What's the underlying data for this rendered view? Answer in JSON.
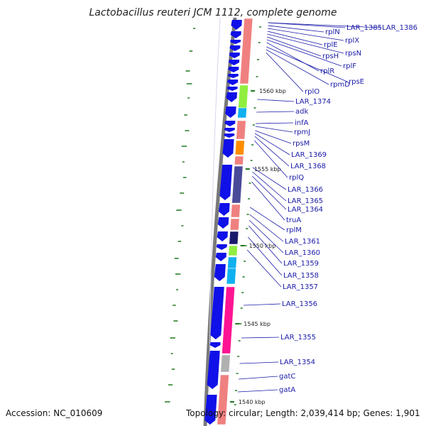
{
  "title": "Lactobacillus reuteri JCM 1112, complete genome",
  "accession": "Accession: NC_010609",
  "topology": "Topology: circular; Length: 2,039,414 bp; Genes: 1,901",
  "colors": {
    "backbone": "#7a7a7a",
    "cds": "#1010e8",
    "label": "#1a1aa8",
    "gc_mark": "#1f7a1f",
    "salmon": "#f08080",
    "lime": "#90ee40",
    "sky": "#10b0f0",
    "orange": "#ff8c00",
    "slate": "#4a4a9a",
    "navy": "#1a1a6a",
    "pink": "#ff1493",
    "gray": "#b0b0b0"
  },
  "ticks": [
    {
      "label": "1560 kbp"
    },
    {
      "label": "1555 kbp"
    },
    {
      "label": "1550 kbp"
    },
    {
      "label": "1545 kbp"
    },
    {
      "label": "1540 kbp"
    }
  ],
  "genes": [
    {
      "name": "LAR_1385"
    },
    {
      "name": "LAR_1386"
    },
    {
      "name": "rplN"
    },
    {
      "name": "rplX"
    },
    {
      "name": "rplE"
    },
    {
      "name": "rpsN"
    },
    {
      "name": "rpsH"
    },
    {
      "name": "rplF"
    },
    {
      "name": "rplR"
    },
    {
      "name": "rpsE"
    },
    {
      "name": "rpmD"
    },
    {
      "name": "rplO"
    },
    {
      "name": "LAR_1374"
    },
    {
      "name": "adk"
    },
    {
      "name": "infA"
    },
    {
      "name": "rpmJ"
    },
    {
      "name": "rpsM"
    },
    {
      "name": "LAR_1369"
    },
    {
      "name": "LAR_1368"
    },
    {
      "name": "rplQ"
    },
    {
      "name": "LAR_1366"
    },
    {
      "name": "LAR_1365"
    },
    {
      "name": "LAR_1364"
    },
    {
      "name": "truA"
    },
    {
      "name": "rplM"
    },
    {
      "name": "LAR_1361"
    },
    {
      "name": "LAR_1360"
    },
    {
      "name": "LAR_1359"
    },
    {
      "name": "LAR_1358"
    },
    {
      "name": "LAR_1357"
    },
    {
      "name": "LAR_1356"
    },
    {
      "name": "LAR_1355"
    },
    {
      "name": "LAR_1354"
    },
    {
      "name": "gatC"
    },
    {
      "name": "gatA"
    }
  ]
}
